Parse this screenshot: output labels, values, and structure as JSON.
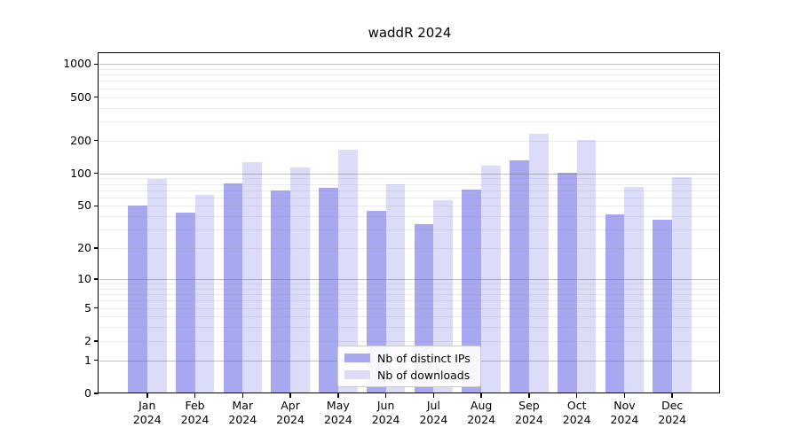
{
  "title": "waddR 2024",
  "chart_data": {
    "type": "bar",
    "title": "waddR 2024",
    "categories": [
      "Jan",
      "Feb",
      "Mar",
      "Apr",
      "May",
      "Jun",
      "Jul",
      "Aug",
      "Sep",
      "Oct",
      "Nov",
      "Dec"
    ],
    "year_label": "2024",
    "series": [
      {
        "name": "Nb of distinct IPs",
        "color": "#a8a8f0",
        "values": [
          50,
          43,
          81,
          69,
          74,
          45,
          34,
          71,
          131,
          101,
          42,
          37
        ]
      },
      {
        "name": "Nb of downloads",
        "color": "#dcdcf8",
        "values": [
          89,
          63,
          126,
          113,
          165,
          79,
          57,
          118,
          231,
          203,
          75,
          92
        ]
      }
    ],
    "yticks": [
      0,
      1,
      2,
      5,
      10,
      20,
      50,
      100,
      200,
      500,
      1000
    ],
    "ylim": [
      0,
      1234
    ],
    "yscale": "log1p",
    "xlabel": "",
    "ylabel": "",
    "grid": "horizontal major+minor",
    "legend_position": "bottom-center-inside"
  }
}
